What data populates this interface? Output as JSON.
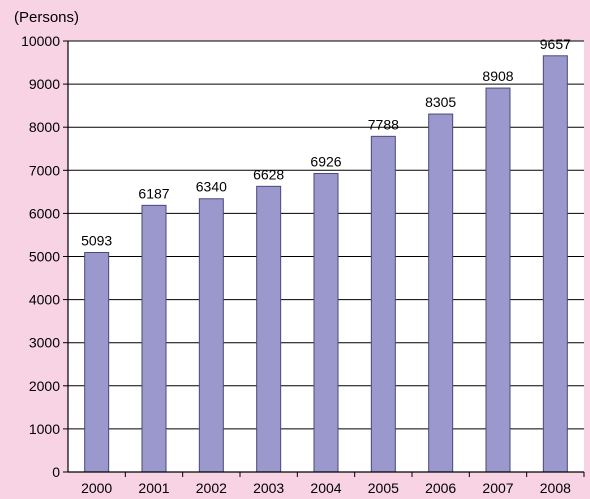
{
  "chart_data": {
    "type": "bar",
    "unit_label": "(Persons)",
    "categories": [
      "2000",
      "2001",
      "2002",
      "2003",
      "2004",
      "2005",
      "2006",
      "2007",
      "2008"
    ],
    "values": [
      5093,
      6187,
      6340,
      6628,
      6926,
      7788,
      8305,
      8908,
      9657
    ],
    "ylim": [
      0,
      10000
    ],
    "yticks": [
      0,
      1000,
      2000,
      3000,
      4000,
      5000,
      6000,
      7000,
      8000,
      9000,
      10000
    ],
    "grid": true,
    "data_labels": true,
    "bar_color": "#9a98cc",
    "bar_edge_color": "#4a4a78",
    "plot_background": "#ffffff",
    "page_background": "#f7d3e4"
  }
}
